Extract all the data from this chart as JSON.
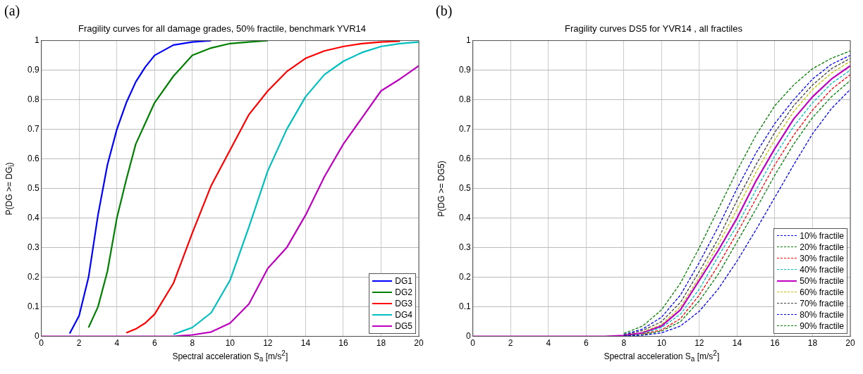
{
  "chart_data": [
    {
      "type": "line",
      "title": "Fragility curves for all damage grades, 50% fractile, benchmark YVR14",
      "xlabel": "Spectral acceleration S$_{a}$ [m/s$^{2}$]",
      "ylabel": "P(DG >= DG$_{i}$)",
      "annotations": [
        "(a)"
      ],
      "xlim": [
        0,
        20
      ],
      "xticks": [
        0,
        2,
        4,
        6,
        8,
        10,
        12,
        14,
        16,
        18,
        20
      ],
      "ylim": [
        0,
        1
      ],
      "yticks": [
        0,
        0.1,
        0.2,
        0.3,
        0.4,
        0.5,
        0.6,
        0.7,
        0.8,
        0.9,
        1
      ],
      "grid": true,
      "legend": "bottom right",
      "line_style": "solid",
      "series": [
        {
          "name": "DG1",
          "color": "#0000ff",
          "x": [
            1.5,
            2,
            2.5,
            3,
            3.5,
            4,
            4.5,
            5,
            5.5,
            6,
            7,
            8,
            9
          ],
          "values": [
            0.01,
            0.07,
            0.2,
            0.41,
            0.58,
            0.7,
            0.79,
            0.86,
            0.91,
            0.95,
            0.985,
            0.995,
            1
          ]
        },
        {
          "name": "DG2",
          "color": "#008000",
          "x": [
            2.5,
            3,
            3.5,
            4,
            4.5,
            5,
            5.5,
            6,
            7,
            8,
            9,
            10,
            11,
            12
          ],
          "values": [
            0.03,
            0.1,
            0.22,
            0.4,
            0.53,
            0.65,
            0.72,
            0.79,
            0.88,
            0.95,
            0.975,
            0.99,
            0.995,
            1
          ]
        },
        {
          "name": "DG3",
          "color": "#ff0000",
          "x": [
            4.5,
            5,
            5.5,
            6,
            7,
            8,
            9,
            10,
            11,
            12,
            13,
            14,
            15,
            16,
            17,
            18,
            19
          ],
          "values": [
            0.012,
            0.025,
            0.045,
            0.075,
            0.18,
            0.35,
            0.51,
            0.63,
            0.75,
            0.83,
            0.895,
            0.94,
            0.965,
            0.98,
            0.99,
            0.995,
            0.998
          ]
        },
        {
          "name": "DG4",
          "color": "#00bfbf",
          "x": [
            7,
            8,
            9,
            10,
            11,
            12,
            13,
            14,
            15,
            16,
            17,
            18,
            19,
            20
          ],
          "values": [
            0.007,
            0.03,
            0.08,
            0.19,
            0.37,
            0.56,
            0.7,
            0.81,
            0.885,
            0.93,
            0.96,
            0.98,
            0.99,
            0.995
          ]
        },
        {
          "name": "DG5",
          "color": "#bf00bf",
          "x": [
            0,
            1,
            2,
            3,
            4,
            5,
            6,
            7,
            8,
            9,
            10,
            11,
            12,
            13,
            14,
            15,
            16,
            17,
            18,
            19,
            20
          ],
          "values": [
            0,
            0,
            0,
            0,
            0,
            0,
            0,
            0,
            0.005,
            0.015,
            0.045,
            0.11,
            0.23,
            0.3,
            0.41,
            0.54,
            0.65,
            0.74,
            0.83,
            0.87,
            0.915
          ]
        }
      ]
    },
    {
      "type": "line",
      "title": "Fragility curves DS5 for YVR14 , all fractiles",
      "xlabel": "Spectral acceleration S$_{a}$ [m/s$^{2}$]",
      "ylabel": "P(DG >= DG5)",
      "annotations": [
        "(b)"
      ],
      "x": [
        8,
        9,
        10,
        11,
        12,
        13,
        14,
        15,
        16,
        17,
        18,
        19,
        20
      ],
      "xlim": [
        0,
        20
      ],
      "xticks": [
        0,
        2,
        4,
        6,
        8,
        10,
        12,
        14,
        16,
        18,
        20
      ],
      "ylim": [
        0,
        1
      ],
      "yticks": [
        0,
        0.1,
        0.2,
        0.3,
        0.4,
        0.5,
        0.6,
        0.7,
        0.8,
        0.9,
        1
      ],
      "grid": true,
      "legend": "bottom right",
      "series": [
        {
          "name": "10% fractile",
          "color": "#0000ff",
          "line_style": "dashed",
          "values": [
            0.001,
            0.004,
            0.012,
            0.035,
            0.085,
            0.16,
            0.255,
            0.36,
            0.47,
            0.58,
            0.685,
            0.77,
            0.835
          ]
        },
        {
          "name": "20% fractile",
          "color": "#008000",
          "line_style": "dashed",
          "values": [
            0.002,
            0.006,
            0.018,
            0.05,
            0.12,
            0.21,
            0.32,
            0.43,
            0.545,
            0.65,
            0.74,
            0.81,
            0.865
          ]
        },
        {
          "name": "30% fractile",
          "color": "#ff0000",
          "line_style": "dashed",
          "values": [
            null,
            0.008,
            0.022,
            0.06,
            0.14,
            0.24,
            0.35,
            0.465,
            0.58,
            0.68,
            0.765,
            0.835,
            0.885
          ]
        },
        {
          "name": "40% fractile",
          "color": "#00bfbf",
          "line_style": "dashed",
          "values": [
            null,
            0.01,
            0.03,
            0.075,
            0.16,
            0.27,
            0.375,
            0.495,
            0.61,
            0.71,
            0.79,
            0.855,
            0.9
          ]
        },
        {
          "name": "50% fractile",
          "color": "#bf00bf",
          "line_style": "solid",
          "x": [
            0,
            2,
            4,
            6,
            7,
            8,
            9,
            10,
            11,
            12,
            13,
            14,
            15,
            16,
            17,
            18,
            19,
            20
          ],
          "values": [
            0,
            0,
            0,
            0,
            0,
            0.003,
            0.012,
            0.035,
            0.09,
            0.19,
            0.29,
            0.4,
            0.525,
            0.635,
            0.735,
            0.81,
            0.87,
            0.915
          ]
        },
        {
          "name": "60% fractile",
          "color": "#bfbf00",
          "line_style": "dashed",
          "values": [
            null,
            0.015,
            0.04,
            0.1,
            0.2,
            0.31,
            0.43,
            0.555,
            0.665,
            0.76,
            0.835,
            0.89,
            0.93
          ]
        },
        {
          "name": "70% fractile",
          "color": "#404040",
          "line_style": "dashed",
          "values": [
            0.005,
            0.02,
            0.05,
            0.115,
            0.22,
            0.33,
            0.46,
            0.58,
            0.69,
            0.78,
            0.85,
            0.905,
            0.94
          ]
        },
        {
          "name": "80% fractile",
          "color": "#0000ff",
          "line_style": "dashed",
          "values": [
            0.006,
            0.025,
            0.065,
            0.14,
            0.25,
            0.37,
            0.5,
            0.62,
            0.72,
            0.8,
            0.87,
            0.92,
            0.95
          ]
        },
        {
          "name": "90% fractile",
          "color": "#008000",
          "line_style": "dashed",
          "values": [
            0.01,
            0.035,
            0.09,
            0.18,
            0.3,
            0.43,
            0.56,
            0.68,
            0.78,
            0.85,
            0.905,
            0.94,
            0.965
          ]
        }
      ]
    }
  ]
}
